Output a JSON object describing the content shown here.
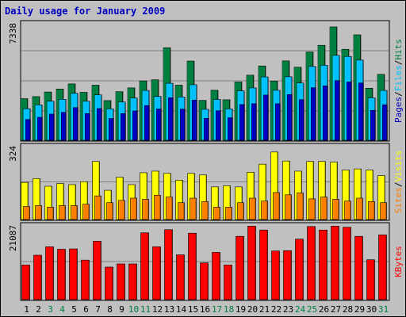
{
  "chart_data": {
    "type": "bar",
    "title": "Daily usage for January 2009",
    "categories": [
      "1",
      "2",
      "3",
      "4",
      "5",
      "6",
      "7",
      "8",
      "9",
      "10",
      "11",
      "12",
      "13",
      "14",
      "15",
      "16",
      "17",
      "18",
      "19",
      "20",
      "21",
      "22",
      "23",
      "24",
      "25",
      "26",
      "27",
      "28",
      "29",
      "30",
      "31"
    ],
    "weekend_days": [
      "3",
      "4",
      "10",
      "11",
      "17",
      "18",
      "24",
      "25",
      "31"
    ],
    "panels": [
      {
        "name": "hits-files-pages",
        "ymax_label": "7338",
        "ymax": 7338,
        "legend": [
          "Pages",
          "/",
          "Files",
          "/",
          "Hits"
        ],
        "series": [
          {
            "name": "Hits",
            "color": "#008040",
            "values": [
              2620,
              2750,
              3040,
              3230,
              3550,
              3020,
              3470,
              2500,
              3060,
              3300,
              3740,
              3810,
              5830,
              3470,
              4990,
              2510,
              3150,
              2550,
              3670,
              4100,
              4680,
              3720,
              5000,
              4600,
              5560,
              5980,
              7140,
              5730,
              6640,
              3280,
              4150
            ]
          },
          {
            "name": "Files",
            "color": "#00c0ff",
            "values": [
              1990,
              2230,
              2460,
              2580,
              2960,
              2460,
              2860,
              1980,
              2410,
              2660,
              3140,
              2760,
              3590,
              2730,
              3500,
              1950,
              2570,
              1980,
              3110,
              3300,
              3990,
              3150,
              4000,
              3610,
              4650,
              4720,
              5350,
              5280,
              5050,
              2670,
              3140
            ]
          },
          {
            "name": "Pages",
            "color": "#0000c0",
            "values": [
              1310,
              1450,
              1650,
              1760,
              2060,
              1680,
              2000,
              1370,
              1680,
              1850,
              2190,
              1970,
              2680,
              1960,
              2530,
              1380,
              1860,
              1420,
              2250,
              2300,
              2850,
              2300,
              2880,
              2560,
              3310,
              3430,
              3760,
              3670,
              3610,
              1880,
              2240
            ]
          }
        ]
      },
      {
        "name": "visits-sites",
        "ymax_label": "324",
        "ymax": 324,
        "legend": [
          "Sites",
          "/",
          "Visits"
        ],
        "series": [
          {
            "name": "Visits",
            "color": "#ffff00",
            "values": [
              165,
              182,
              148,
              160,
              155,
              168,
              258,
              130,
              188,
              155,
              208,
              215,
              205,
              175,
              205,
              198,
              145,
              150,
              145,
              210,
              246,
              300,
              260,
              215,
              258,
              258,
              255,
              220,
              225,
              220,
              195
            ]
          },
          {
            "name": "Sites",
            "color": "#ff8000",
            "values": [
              58,
              62,
              55,
              62,
              62,
              68,
              105,
              75,
              85,
              95,
              90,
              108,
              100,
              75,
              95,
              80,
              55,
              55,
              75,
              95,
              82,
              120,
              110,
              118,
              92,
              100,
              90,
              82,
              95,
              80,
              75
            ]
          }
        ]
      },
      {
        "name": "kbytes",
        "ymax_label": "21087",
        "ymax": 21087,
        "legend": [
          "KBytes"
        ],
        "series": [
          {
            "name": "KBytes",
            "color": "#ff0000",
            "values": [
              9900,
              12700,
              15100,
              14400,
              14500,
              11300,
              16700,
              9300,
              10200,
              10200,
              19100,
              15100,
              20000,
              12800,
              19000,
              10500,
              13500,
              9900,
              18100,
              21000,
              19900,
              13900,
              14000,
              17300,
              20900,
              19900,
              21000,
              20700,
              18100,
              11400,
              18500
            ]
          }
        ]
      }
    ]
  }
}
